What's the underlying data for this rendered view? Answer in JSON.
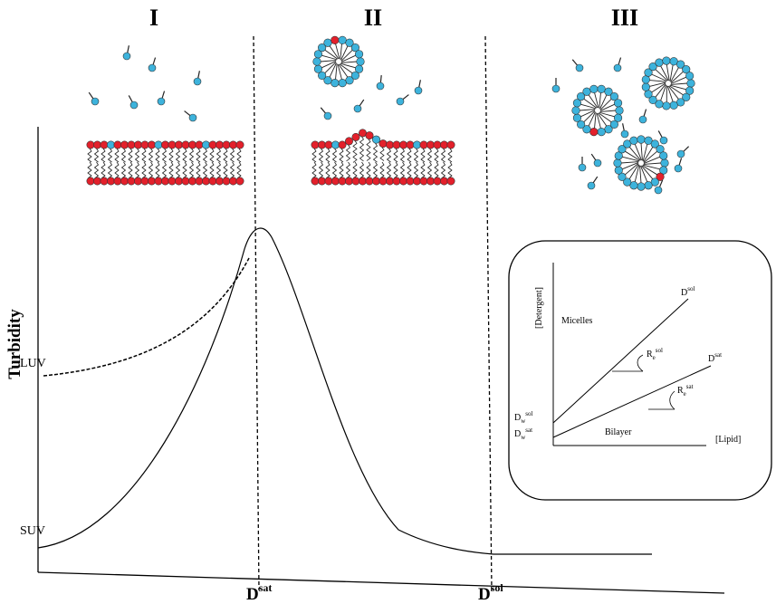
{
  "regions": [
    "I",
    "II",
    "III"
  ],
  "y_axis_label": "Turbidity",
  "curve_labels": [
    "LUV",
    "SUV"
  ],
  "x_markers": [
    {
      "base": "D",
      "sup": "sat"
    },
    {
      "base": "D",
      "sup": "sol"
    }
  ],
  "inset": {
    "y_axis_label": "[Detergent]",
    "x_axis_label": "[Lipid]",
    "phase_labels": [
      "Micelles",
      "Bilayer"
    ],
    "line_labels": [
      {
        "base": "D",
        "sup": "sol"
      },
      {
        "base": "D",
        "sup": "sat"
      }
    ],
    "slope_labels": [
      {
        "base": "R",
        "sub": "e",
        "sup": "sol"
      },
      {
        "base": "R",
        "sub": "e",
        "sup": "sat"
      }
    ],
    "intercept_labels": [
      {
        "base": "D",
        "sub": "w",
        "sup": "sol"
      },
      {
        "base": "D",
        "sub": "w",
        "sup": "sat"
      }
    ]
  }
}
